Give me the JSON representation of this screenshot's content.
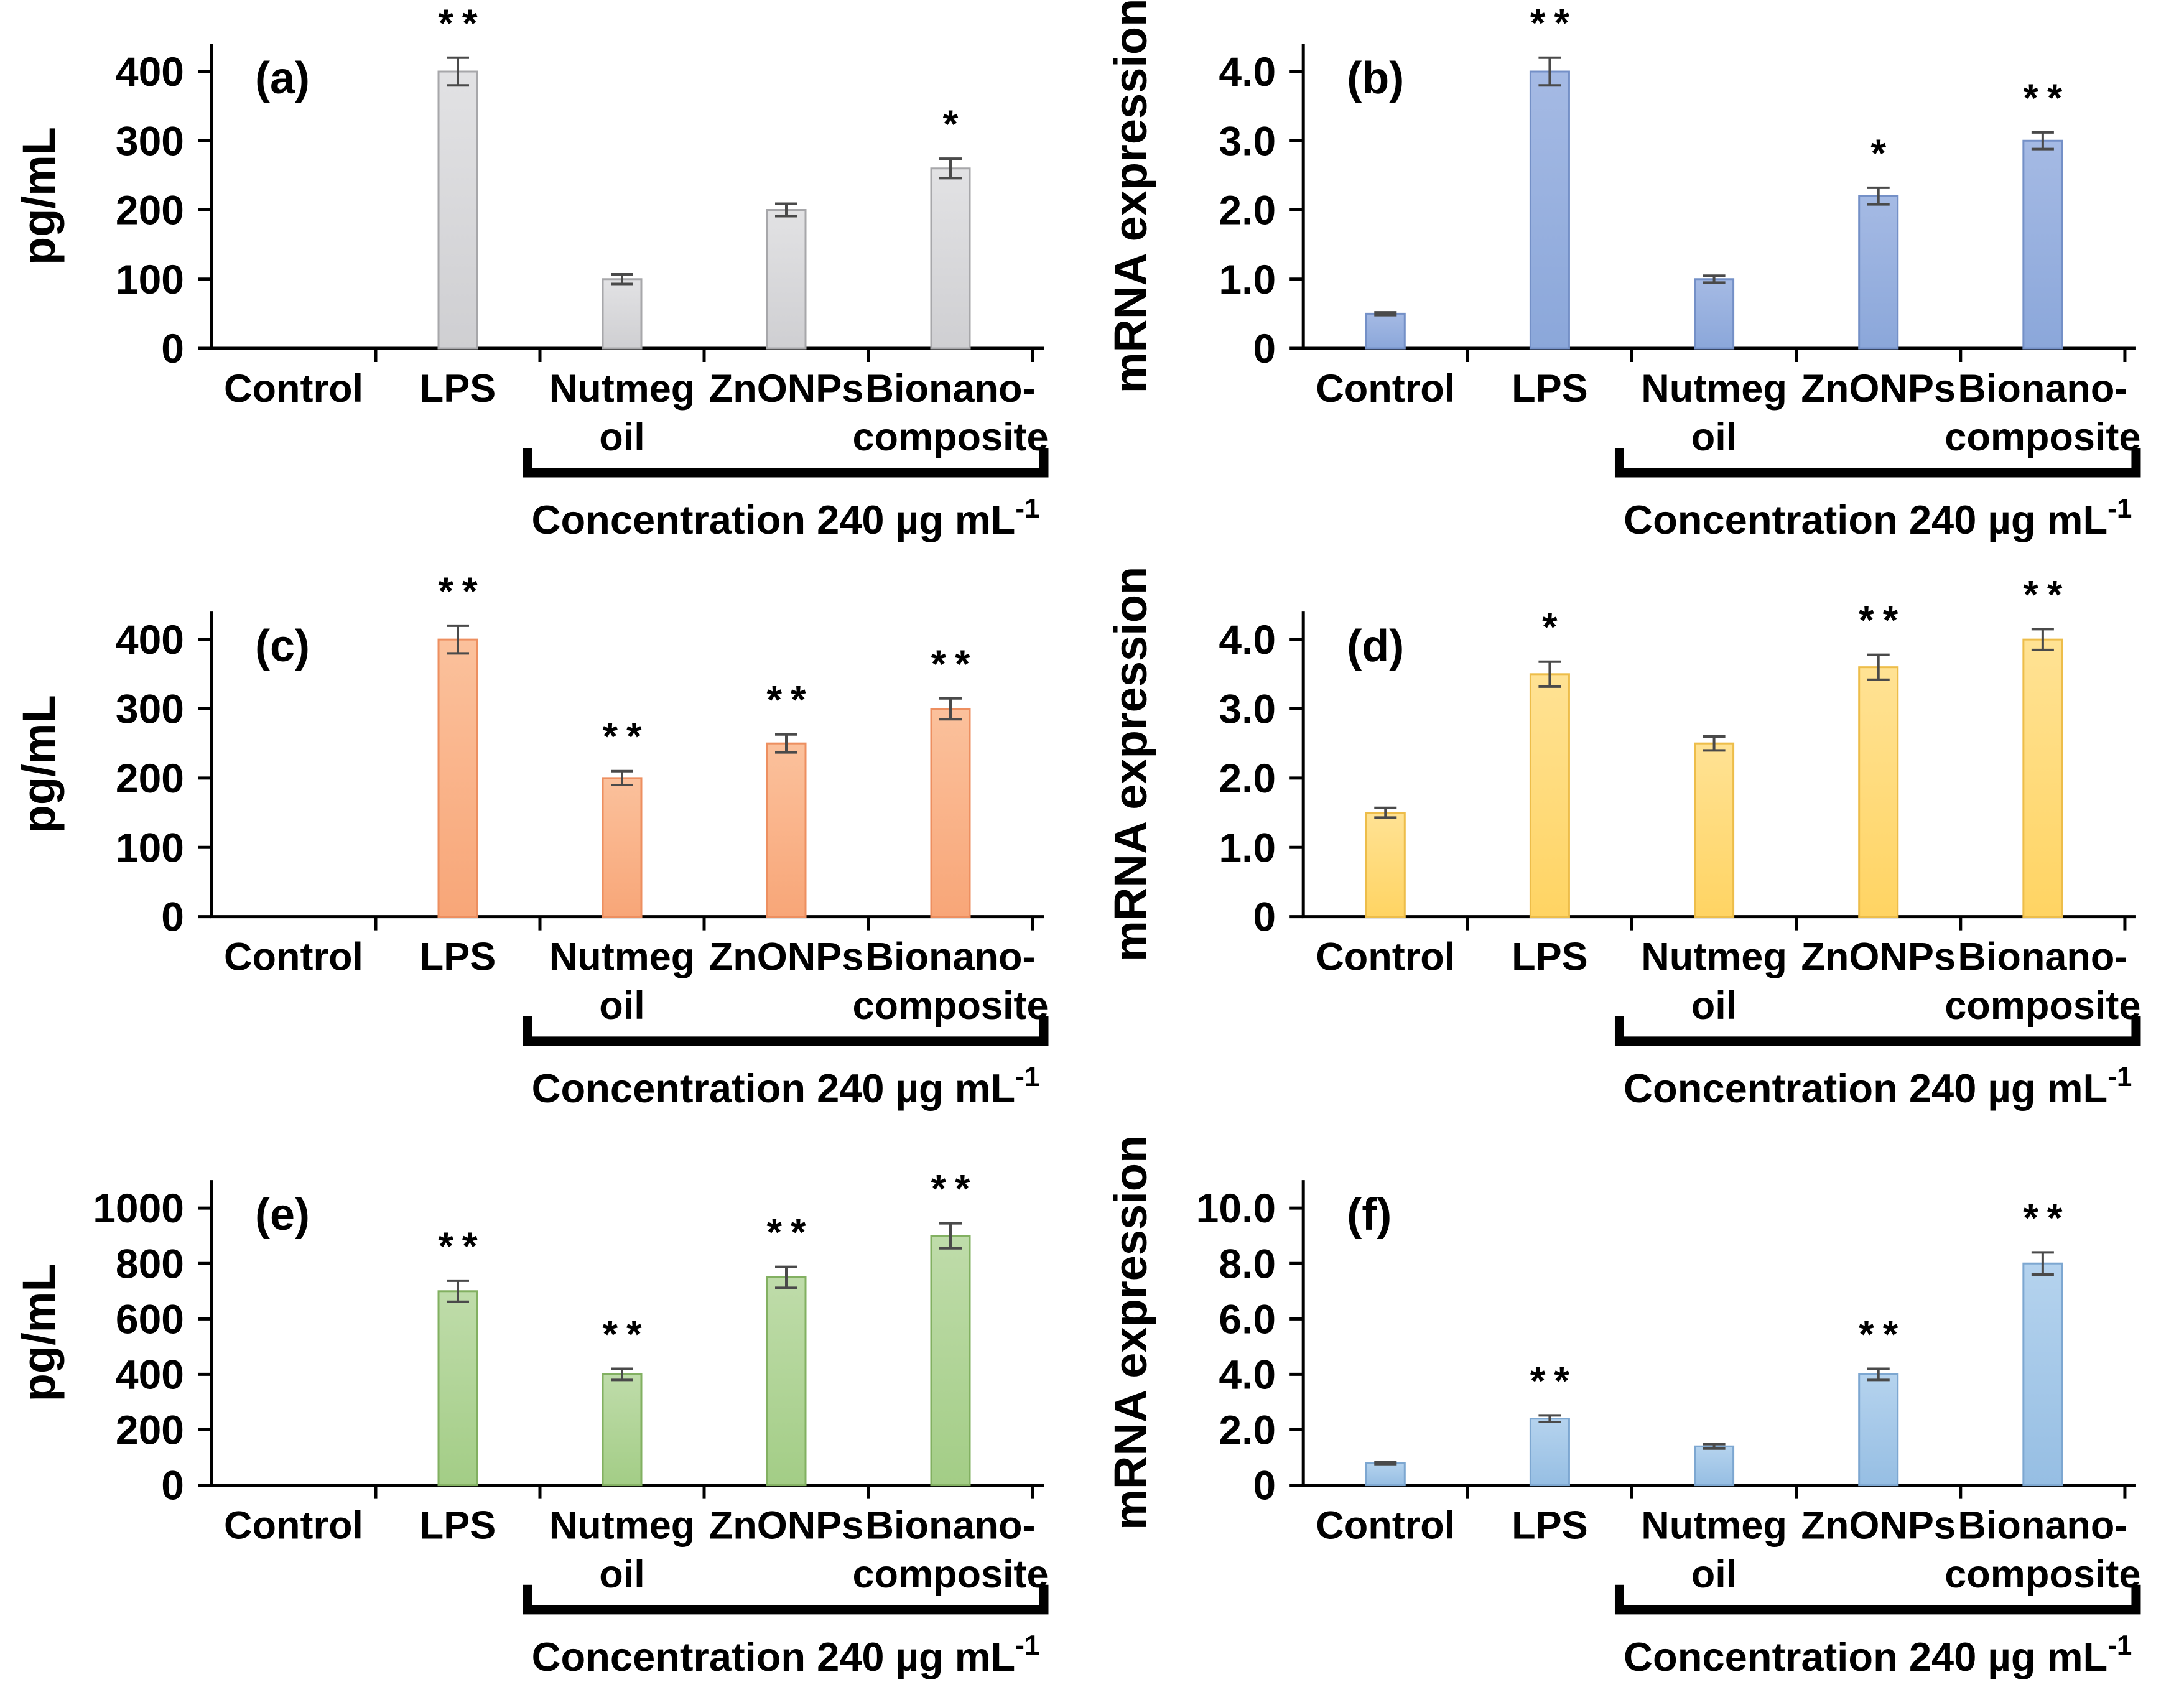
{
  "figure": {
    "background": "#FFFFFF",
    "text_color": "#000000",
    "axis_color": "#000000",
    "error_bar_color": "#4A4A4A",
    "categories": [
      "Control",
      "LPS",
      "Nutmeg oil",
      "ZnONPs",
      "Bionano-composite"
    ],
    "category_label_lines": [
      [
        "Control"
      ],
      [
        "LPS"
      ],
      [
        "Nutmeg",
        "oil"
      ],
      [
        "ZnONPs"
      ],
      [
        "Bionano-",
        "composite"
      ]
    ],
    "bracket_from_category": 2,
    "bracket_to_category": 4,
    "bracket_label": "Concentration 240  µg mL",
    "bracket_label_superscript": "-1",
    "significance_single": "*",
    "significance_double": "**"
  },
  "chart_data": [
    {
      "type": "bar",
      "panel": "(a)",
      "ylabel": "pg/mL",
      "xlabel": "",
      "categories": [
        "Control",
        "LPS",
        "Nutmeg oil",
        "ZnONPs",
        "Bionano-composite"
      ],
      "values": [
        0,
        400,
        100,
        200,
        260
      ],
      "errors": [
        0,
        20,
        7,
        9,
        14
      ],
      "significance": [
        "",
        "**",
        "",
        "",
        "*"
      ],
      "yticks": [
        0,
        100,
        200,
        300,
        400
      ],
      "ytick_labels": [
        "0",
        "100",
        "200",
        "300",
        "400"
      ],
      "ylim": [
        0,
        450
      ],
      "grid": false,
      "legend": null,
      "bar_fill": "#CFCFD2",
      "bar_fill_top": "#E2E2E4",
      "bar_border": "#A7A7AA"
    },
    {
      "type": "bar",
      "panel": "(b)",
      "ylabel": "mRNA expression",
      "xlabel": "",
      "categories": [
        "Control",
        "LPS",
        "Nutmeg oil",
        "ZnONPs",
        "Bionano-composite"
      ],
      "values": [
        0.5,
        4.0,
        1.0,
        2.2,
        3.0
      ],
      "errors": [
        0.02,
        0.2,
        0.05,
        0.12,
        0.12
      ],
      "significance": [
        "",
        "**",
        "",
        "*",
        "**"
      ],
      "yticks": [
        0,
        1,
        2,
        3,
        4
      ],
      "ytick_labels": [
        "0",
        "1.0",
        "2.0",
        "3.0",
        "4.0"
      ],
      "ylim": [
        0,
        4.5
      ],
      "grid": false,
      "legend": null,
      "bar_fill": "#8BA7DA",
      "bar_fill_top": "#A5BAE4",
      "bar_border": "#7490C7"
    },
    {
      "type": "bar",
      "panel": "(c)",
      "ylabel": "pg/mL",
      "xlabel": "",
      "categories": [
        "Control",
        "LPS",
        "Nutmeg oil",
        "ZnONPs",
        "Bionano-composite"
      ],
      "values": [
        0,
        400,
        200,
        250,
        300
      ],
      "errors": [
        0,
        20,
        10,
        13,
        15
      ],
      "significance": [
        "",
        "**",
        "**",
        "**",
        "**"
      ],
      "yticks": [
        0,
        100,
        200,
        300,
        400
      ],
      "ytick_labels": [
        "0",
        "100",
        "200",
        "300",
        "400"
      ],
      "ylim": [
        0,
        450
      ],
      "grid": false,
      "legend": null,
      "bar_fill": "#F8A678",
      "bar_fill_top": "#FBC19C",
      "bar_border": "#ED8F60"
    },
    {
      "type": "bar",
      "panel": "(d)",
      "ylabel": "mRNA expression",
      "xlabel": "",
      "categories": [
        "Control",
        "LPS",
        "Nutmeg oil",
        "ZnONPs",
        "Bionano-composite"
      ],
      "values": [
        1.5,
        3.5,
        2.5,
        3.6,
        4.0
      ],
      "errors": [
        0.07,
        0.18,
        0.1,
        0.18,
        0.15
      ],
      "significance": [
        "",
        "*",
        "",
        "**",
        "**"
      ],
      "yticks": [
        0,
        1,
        2,
        3,
        4
      ],
      "ytick_labels": [
        "0",
        "1.0",
        "2.0",
        "3.0",
        "4.0"
      ],
      "ylim": [
        0,
        4.5
      ],
      "grid": false,
      "legend": null,
      "bar_fill": "#FFD463",
      "bar_fill_top": "#FFE294",
      "bar_border": "#EDBD4A"
    },
    {
      "type": "bar",
      "panel": "(e)",
      "ylabel": "pg/mL",
      "xlabel": "",
      "categories": [
        "Control",
        "LPS",
        "Nutmeg oil",
        "ZnONPs",
        "Bionano-composite"
      ],
      "values": [
        0,
        700,
        400,
        750,
        900
      ],
      "errors": [
        0,
        38,
        20,
        38,
        45
      ],
      "significance": [
        "",
        "**",
        "**",
        "**",
        "**"
      ],
      "yticks": [
        0,
        200,
        400,
        600,
        800,
        1000
      ],
      "ytick_labels": [
        "0",
        "200",
        "400",
        "600",
        "800",
        "1000"
      ],
      "ylim": [
        0,
        1100
      ],
      "grid": false,
      "legend": null,
      "bar_fill": "#A3CD86",
      "bar_fill_top": "#BFDCAA",
      "bar_border": "#82B061"
    },
    {
      "type": "bar",
      "panel": "(f)",
      "ylabel": "mRNA expression",
      "xlabel": "",
      "categories": [
        "Control",
        "LPS",
        "Nutmeg oil",
        "ZnONPs",
        "Bionano-composite"
      ],
      "values": [
        0.8,
        2.4,
        1.4,
        4.0,
        8.0
      ],
      "errors": [
        0.04,
        0.12,
        0.08,
        0.2,
        0.4
      ],
      "significance": [
        "",
        "**",
        "",
        "**",
        "**"
      ],
      "yticks": [
        0,
        2,
        4,
        6,
        8,
        10
      ],
      "ytick_labels": [
        "0",
        "2.0",
        "4.0",
        "6.0",
        "8.0",
        "10.0"
      ],
      "ylim": [
        0,
        11
      ],
      "grid": false,
      "legend": null,
      "bar_fill": "#96BEE3",
      "bar_fill_top": "#B5D3EE",
      "bar_border": "#7DA7D1"
    }
  ]
}
